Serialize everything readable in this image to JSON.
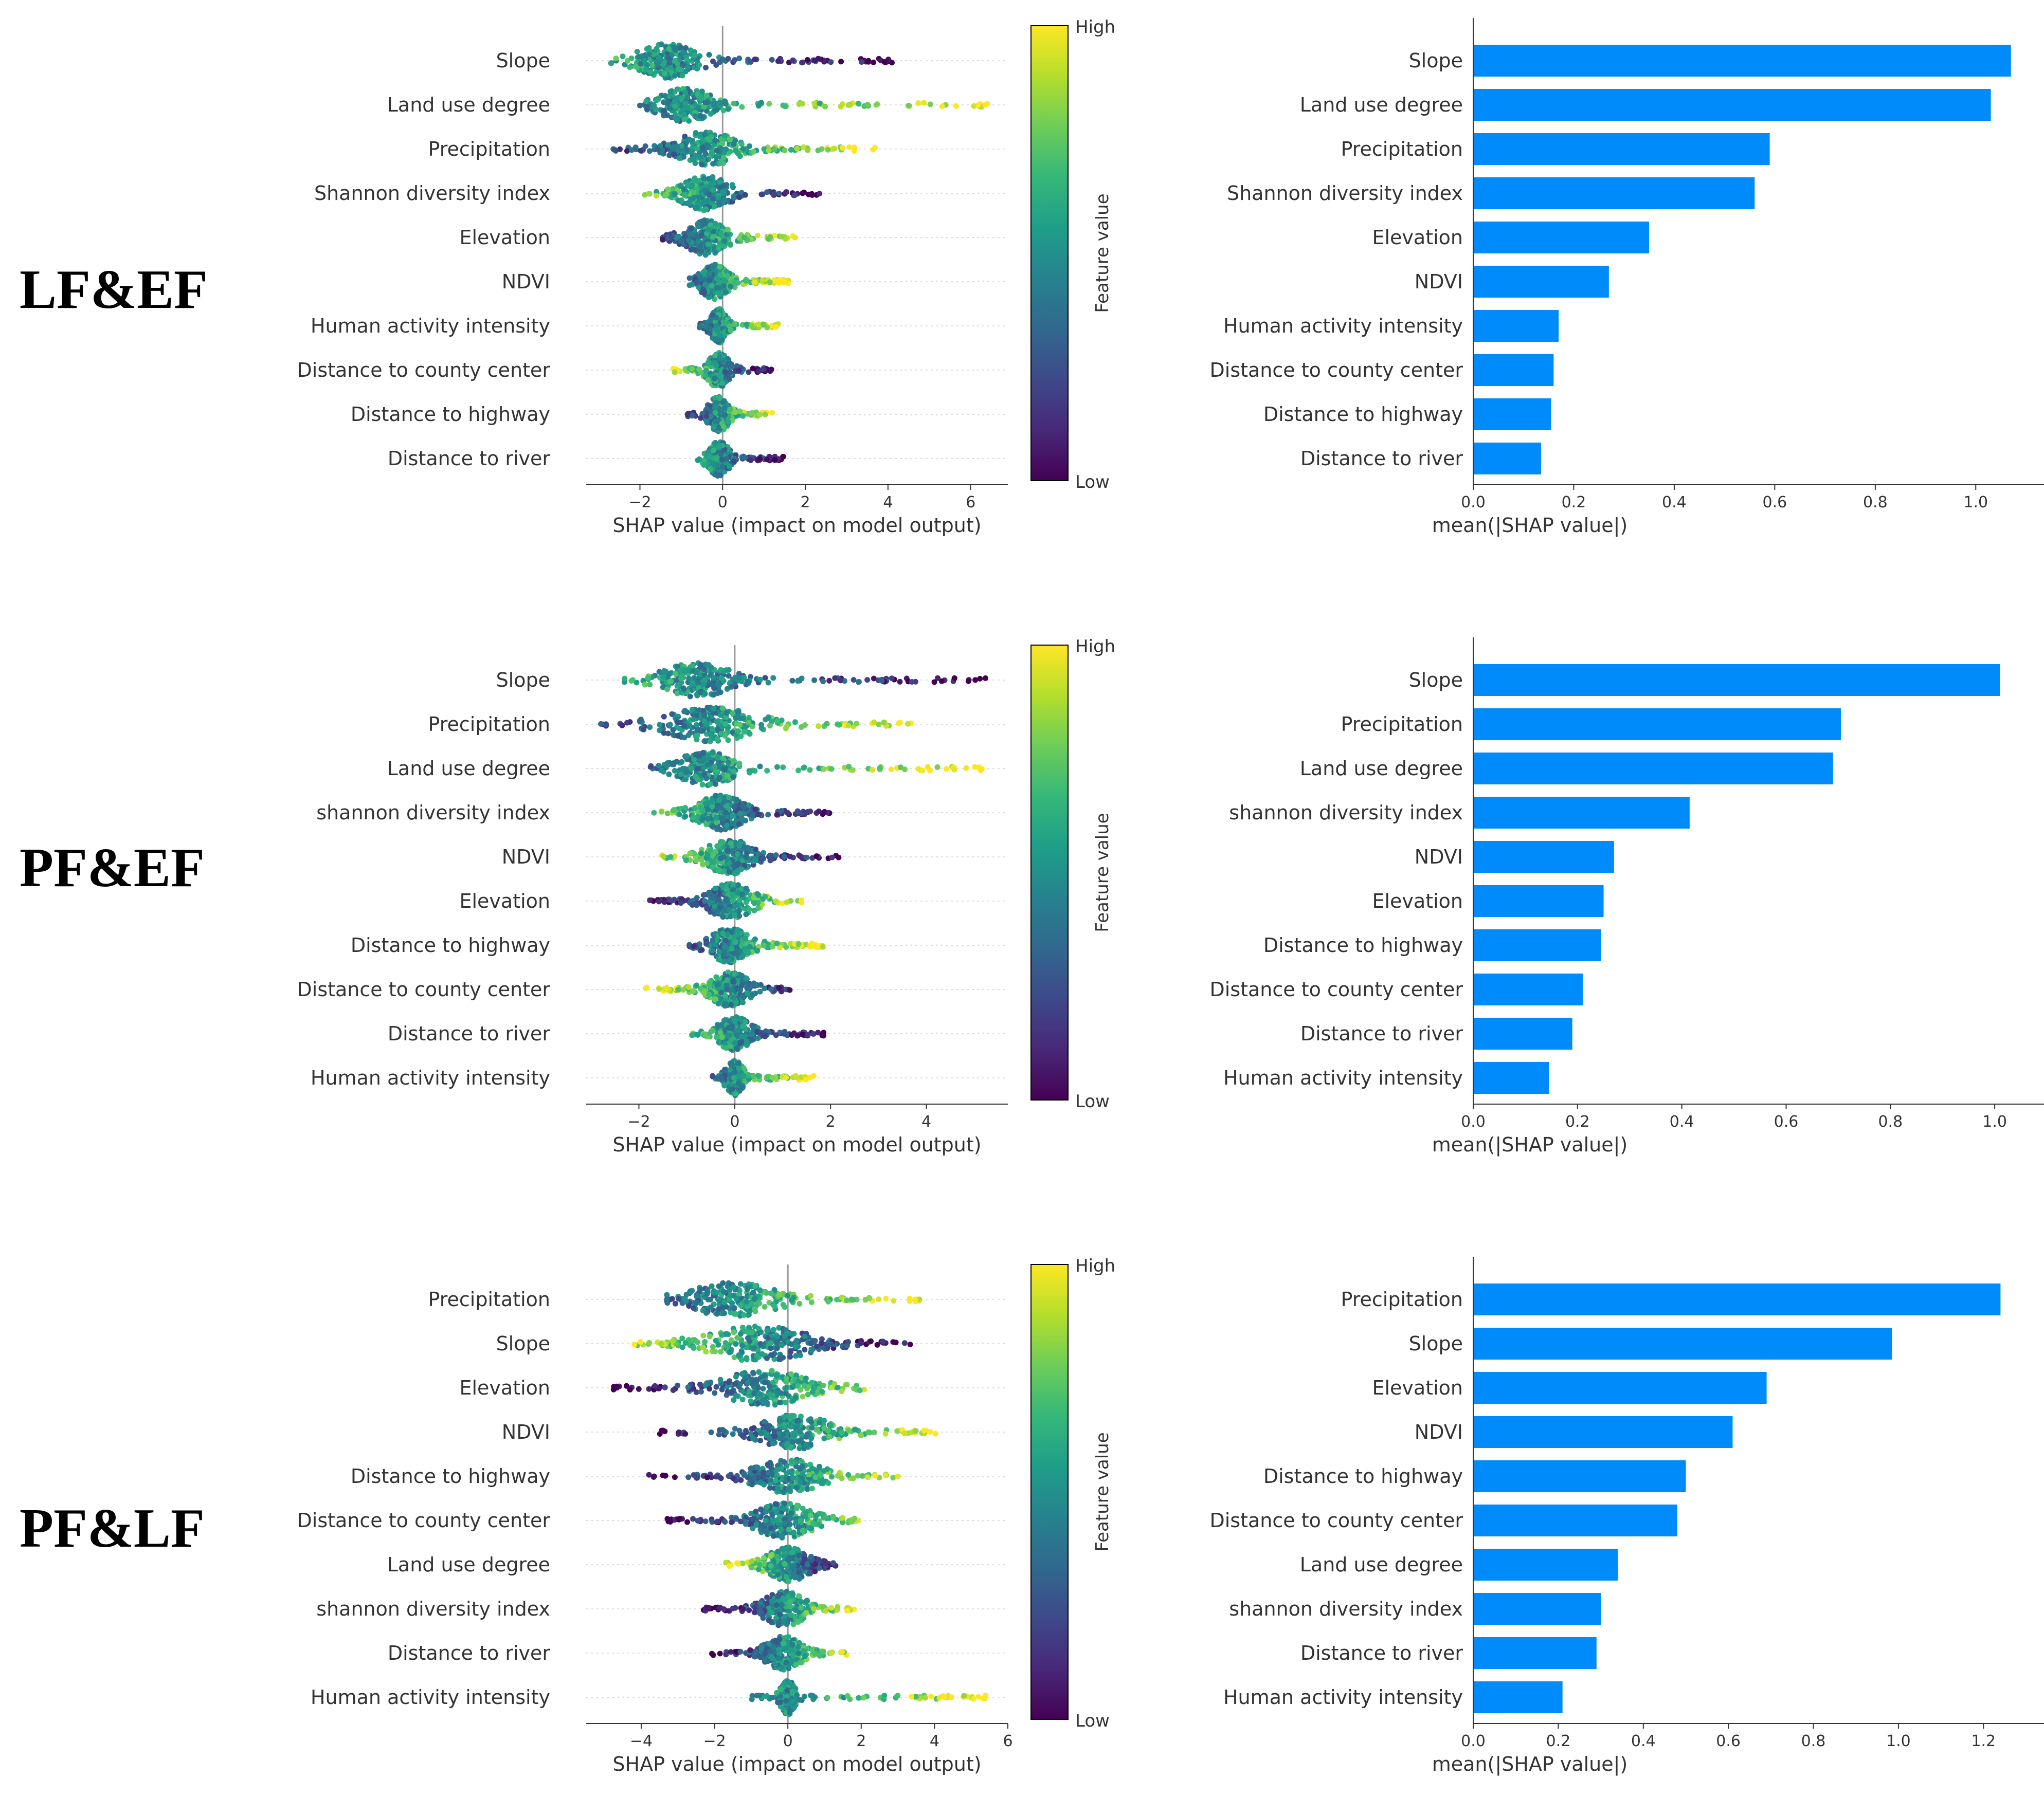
{
  "colors": {
    "bar": "#008bfb",
    "axis": "#333333",
    "text": "#333333",
    "gridline": "#dddddd",
    "zero_line": "#999999",
    "colormap": "viridis"
  },
  "colorbar": {
    "high": "High",
    "low": "Low",
    "label": "Feature value"
  },
  "row_labels": [
    "LF&EF",
    "PF&EF",
    "PF&LF"
  ],
  "chart_data": [
    {
      "id": "lf-ef-beeswarm",
      "type": "scatter",
      "subtype": "beeswarm",
      "xlabel": "SHAP value (impact on model output)",
      "xlim": [
        -3.3,
        6.9
      ],
      "xticks": [
        -2,
        0,
        2,
        4,
        6
      ],
      "xtick_labels": [
        "−2",
        "0",
        "2",
        "4",
        "6"
      ],
      "features": [
        "Slope",
        "Land use degree",
        "Precipitation",
        "Shannon diversity index",
        "Elevation",
        "NDVI",
        "Human activity intensity",
        "Distance to county center",
        "Distance to highway",
        "Distance to river"
      ],
      "series": [
        {
          "min": -2.7,
          "max": 4.2,
          "center": -1.3,
          "spread": 0.9,
          "lowRight": true
        },
        {
          "min": -2.0,
          "max": 6.5,
          "center": -0.9,
          "spread": 0.8,
          "lowRight": false
        },
        {
          "min": -2.8,
          "max": 3.8,
          "center": -0.4,
          "spread": 0.9,
          "lowRight": false
        },
        {
          "min": -1.9,
          "max": 2.4,
          "center": -0.4,
          "spread": 0.7,
          "lowRight": true
        },
        {
          "min": -1.5,
          "max": 1.8,
          "center": -0.4,
          "spread": 0.6,
          "lowRight": false
        },
        {
          "min": -0.8,
          "max": 1.6,
          "center": -0.2,
          "spread": 0.4,
          "lowRight": false
        },
        {
          "min": -0.6,
          "max": 1.4,
          "center": -0.1,
          "spread": 0.2,
          "lowRight": false
        },
        {
          "min": -1.2,
          "max": 1.2,
          "center": -0.1,
          "spread": 0.3,
          "lowRight": true
        },
        {
          "min": -0.9,
          "max": 1.2,
          "center": -0.1,
          "spread": 0.3,
          "lowRight": false
        },
        {
          "min": -0.6,
          "max": 1.5,
          "center": -0.1,
          "spread": 0.3,
          "lowRight": true
        }
      ]
    },
    {
      "id": "lf-ef-bar",
      "type": "bar",
      "orientation": "horizontal",
      "xlabel": "mean(|SHAP value|)",
      "xlim": [
        0,
        1.1
      ],
      "xticks": [
        0,
        0.2,
        0.4,
        0.6,
        0.8,
        1.0
      ],
      "xtick_labels": [
        "0.0",
        "0.2",
        "0.4",
        "0.6",
        "0.8",
        "1.0"
      ],
      "categories": [
        "Slope",
        "Land use degree",
        "Precipitation",
        "Shannon diversity index",
        "Elevation",
        "NDVI",
        "Human activity intensity",
        "Distance to county center",
        "Distance to highway",
        "Distance to river"
      ],
      "values": [
        1.07,
        1.03,
        0.59,
        0.56,
        0.35,
        0.27,
        0.17,
        0.16,
        0.155,
        0.135
      ]
    },
    {
      "id": "pf-ef-beeswarm",
      "type": "scatter",
      "subtype": "beeswarm",
      "xlabel": "SHAP value (impact on model output)",
      "xlim": [
        -3.1,
        5.7
      ],
      "xticks": [
        -2,
        0,
        2,
        4
      ],
      "xtick_labels": [
        "−2",
        "0",
        "2",
        "4"
      ],
      "features": [
        "Slope",
        "Precipitation",
        "Land use degree",
        "shannon diversity index",
        "NDVI",
        "Elevation",
        "Distance to highway",
        "Distance to county center",
        "Distance to river",
        "Human activity intensity"
      ],
      "series": [
        {
          "min": -2.3,
          "max": 5.3,
          "center": -0.8,
          "spread": 0.9,
          "lowRight": true
        },
        {
          "min": -2.8,
          "max": 3.7,
          "center": -0.5,
          "spread": 1.2,
          "lowRight": false
        },
        {
          "min": -1.8,
          "max": 5.2,
          "center": -0.6,
          "spread": 0.7,
          "lowRight": false
        },
        {
          "min": -1.7,
          "max": 2.0,
          "center": -0.3,
          "spread": 0.6,
          "lowRight": true
        },
        {
          "min": -1.6,
          "max": 2.3,
          "center": -0.1,
          "spread": 0.6,
          "lowRight": true
        },
        {
          "min": -1.8,
          "max": 1.4,
          "center": -0.1,
          "spread": 0.6,
          "lowRight": false
        },
        {
          "min": -1.0,
          "max": 1.9,
          "center": -0.1,
          "spread": 0.5,
          "lowRight": false
        },
        {
          "min": -1.9,
          "max": 1.2,
          "center": -0.1,
          "spread": 0.5,
          "lowRight": true
        },
        {
          "min": -0.9,
          "max": 1.9,
          "center": 0.0,
          "spread": 0.4,
          "lowRight": true
        },
        {
          "min": -0.5,
          "max": 1.7,
          "center": 0.0,
          "spread": 0.2,
          "lowRight": false
        }
      ]
    },
    {
      "id": "pf-ef-bar",
      "type": "bar",
      "orientation": "horizontal",
      "xlabel": "mean(|SHAP value|)",
      "xlim": [
        0,
        1.06
      ],
      "xticks": [
        0,
        0.2,
        0.4,
        0.6,
        0.8,
        1.0
      ],
      "xtick_labels": [
        "0.0",
        "0.2",
        "0.4",
        "0.6",
        "0.8",
        "1.0"
      ],
      "categories": [
        "Slope",
        "Precipitation",
        "Land use degree",
        "shannon diversity index",
        "NDVI",
        "Elevation",
        "Distance to highway",
        "Distance to county center",
        "Distance to river",
        "Human activity intensity"
      ],
      "values": [
        1.01,
        0.705,
        0.69,
        0.415,
        0.27,
        0.25,
        0.245,
        0.21,
        0.19,
        0.145
      ]
    },
    {
      "id": "pf-lf-beeswarm",
      "type": "scatter",
      "subtype": "beeswarm",
      "xlabel": "SHAP value (impact on model output)",
      "xlim": [
        -5.5,
        6.0
      ],
      "xticks": [
        -4,
        -2,
        0,
        2,
        4,
        6
      ],
      "xtick_labels": [
        "−4",
        "−2",
        "0",
        "2",
        "4",
        "6"
      ],
      "features": [
        "Precipitation",
        "Slope",
        "Elevation",
        "NDVI",
        "Distance to highway",
        "Distance to county center",
        "Land use degree",
        "shannon diversity index",
        "Distance to river",
        "Human activity intensity"
      ],
      "series": [
        {
          "min": -3.3,
          "max": 3.6,
          "center": -1.5,
          "spread": 1.5,
          "lowRight": false
        },
        {
          "min": -4.5,
          "max": 3.5,
          "center": -0.8,
          "spread": 1.8,
          "lowRight": true
        },
        {
          "min": -4.8,
          "max": 2.1,
          "center": -0.6,
          "spread": 1.5,
          "lowRight": false
        },
        {
          "min": -3.5,
          "max": 4.1,
          "center": 0.2,
          "spread": 1.2,
          "lowRight": false
        },
        {
          "min": -3.9,
          "max": 3.1,
          "center": 0.0,
          "spread": 1.1,
          "lowRight": false
        },
        {
          "min": -3.3,
          "max": 2.0,
          "center": -0.1,
          "spread": 1.0,
          "lowRight": false
        },
        {
          "min": -1.7,
          "max": 1.3,
          "center": 0.0,
          "spread": 0.7,
          "lowRight": true
        },
        {
          "min": -2.3,
          "max": 1.9,
          "center": -0.1,
          "spread": 0.7,
          "lowRight": false
        },
        {
          "min": -2.1,
          "max": 1.6,
          "center": -0.1,
          "spread": 0.6,
          "lowRight": false
        },
        {
          "min": -1.0,
          "max": 5.5,
          "center": 0.0,
          "spread": 0.2,
          "lowRight": false
        }
      ]
    },
    {
      "id": "pf-lf-bar",
      "type": "bar",
      "orientation": "horizontal",
      "xlabel": "mean(|SHAP value|)",
      "xlim": [
        0,
        1.3
      ],
      "xticks": [
        0,
        0.2,
        0.4,
        0.6,
        0.8,
        1.0,
        1.2
      ],
      "xtick_labels": [
        "0.0",
        "0.2",
        "0.4",
        "0.6",
        "0.8",
        "1.0",
        "1.2"
      ],
      "categories": [
        "Precipitation",
        "Slope",
        "Elevation",
        "NDVI",
        "Distance to highway",
        "Distance to county center",
        "Land use degree",
        "shannon diversity index",
        "Distance to river",
        "Human activity intensity"
      ],
      "values": [
        1.24,
        0.985,
        0.69,
        0.61,
        0.5,
        0.48,
        0.34,
        0.3,
        0.29,
        0.21
      ]
    }
  ]
}
